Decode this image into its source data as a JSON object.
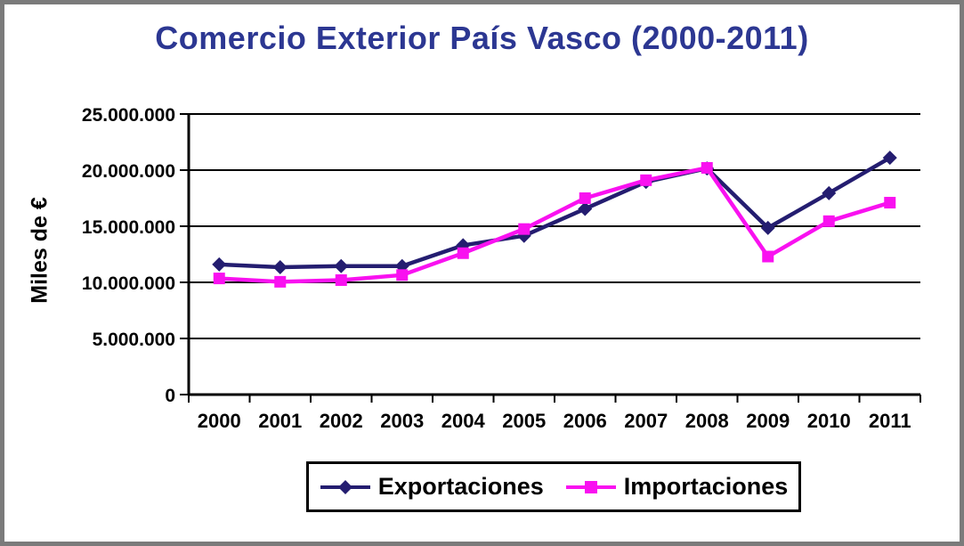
{
  "chart_data": {
    "type": "line",
    "title": "Comercio Exterior País Vasco (2000-2011)",
    "title_color": "#2C3792",
    "ylabel": "Miles de €",
    "xlabel": "",
    "categories": [
      "2000",
      "2001",
      "2002",
      "2003",
      "2004",
      "2005",
      "2006",
      "2007",
      "2008",
      "2009",
      "2010",
      "2011"
    ],
    "series": [
      {
        "name": "Exportaciones",
        "color": "#241D70",
        "marker": "diamond",
        "values": [
          11600000,
          11350000,
          11450000,
          11450000,
          13300000,
          14150000,
          16550000,
          18950000,
          20150000,
          14850000,
          17950000,
          21100000
        ]
      },
      {
        "name": "Importaciones",
        "color": "#F911F0",
        "marker": "square",
        "values": [
          10350000,
          10050000,
          10200000,
          10650000,
          12600000,
          14750000,
          17500000,
          19100000,
          20200000,
          12300000,
          15450000,
          17100000
        ]
      }
    ],
    "ylim": [
      0,
      25000000
    ],
    "ytick_step": 5000000,
    "ytick_labels": [
      "0",
      "5.000.000",
      "10.000.000",
      "15.000.000",
      "20.000.000",
      "25.000.000"
    ],
    "grid": "horizontal-only",
    "legend_position": "bottom"
  }
}
